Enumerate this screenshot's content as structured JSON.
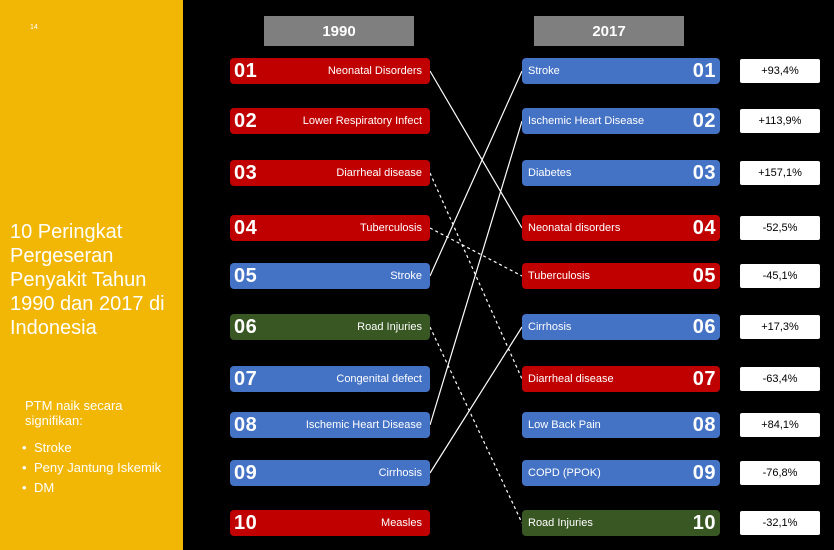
{
  "slide_number": "14",
  "title": "10 Peringkat Pergeseran Penyakit Tahun 1990 dan 2017 di Indonesia",
  "subhead": "PTM naik secara signifikan:",
  "bullets": [
    "Stroke",
    "Peny Jantung Iskemik",
    "DM"
  ],
  "headers": {
    "left": "1990",
    "right": "2017"
  },
  "colors": {
    "yellow": "#F2B705",
    "red": "#C00000",
    "blue": "#4472C4",
    "green": "#385723",
    "header_grey": "#7F7F7F"
  },
  "left_items": [
    {
      "rank": "01",
      "label": "Neonatal Disorders",
      "color": "red"
    },
    {
      "rank": "02",
      "label": "Lower Respiratory Infect",
      "color": "red"
    },
    {
      "rank": "03",
      "label": "Diarrheal disease",
      "color": "red"
    },
    {
      "rank": "04",
      "label": "Tuberculosis",
      "color": "red"
    },
    {
      "rank": "05",
      "label": "Stroke",
      "color": "blue"
    },
    {
      "rank": "06",
      "label": "Road Injuries",
      "color": "green"
    },
    {
      "rank": "07",
      "label": "Congenital defect",
      "color": "blue"
    },
    {
      "rank": "08",
      "label": "Ischemic Heart Disease",
      "color": "blue"
    },
    {
      "rank": "09",
      "label": "Cirrhosis",
      "color": "blue"
    },
    {
      "rank": "10",
      "label": "Measles",
      "color": "red"
    }
  ],
  "right_items": [
    {
      "rank": "01",
      "label": "Stroke",
      "color": "blue",
      "change": "+93,4%"
    },
    {
      "rank": "02",
      "label": "Ischemic Heart Disease",
      "color": "blue",
      "change": "+113,9%"
    },
    {
      "rank": "03",
      "label": "Diabetes",
      "color": "blue",
      "change": "+157,1%"
    },
    {
      "rank": "04",
      "label": "Neonatal disorders",
      "color": "red",
      "change": "-52,5%"
    },
    {
      "rank": "05",
      "label": "Tuberculosis",
      "color": "red",
      "change": "-45,1%"
    },
    {
      "rank": "06",
      "label": "Cirrhosis",
      "color": "blue",
      "change": "+17,3%"
    },
    {
      "rank": "07",
      "label": "Diarrheal disease",
      "color": "red",
      "change": "-63,4%"
    },
    {
      "rank": "08",
      "label": "Low Back Pain",
      "color": "blue",
      "change": "+84,1%"
    },
    {
      "rank": "09",
      "label": "COPD  (PPOK)",
      "color": "blue",
      "change": "-76,8%"
    },
    {
      "rank": "10",
      "label": "Road Injuries",
      "color": "green",
      "change": "-32,1%"
    }
  ],
  "connections": [
    {
      "from_rank": "01",
      "to_rank": "04",
      "style": "solid"
    },
    {
      "from_rank": "03",
      "to_rank": "07",
      "style": "dashed"
    },
    {
      "from_rank": "04",
      "to_rank": "05",
      "style": "dashed"
    },
    {
      "from_rank": "05",
      "to_rank": "01",
      "style": "solid"
    },
    {
      "from_rank": "06",
      "to_rank": "10",
      "style": "dashed"
    },
    {
      "from_rank": "08",
      "to_rank": "02",
      "style": "solid"
    },
    {
      "from_rank": "09",
      "to_rank": "06",
      "style": "solid"
    }
  ]
}
